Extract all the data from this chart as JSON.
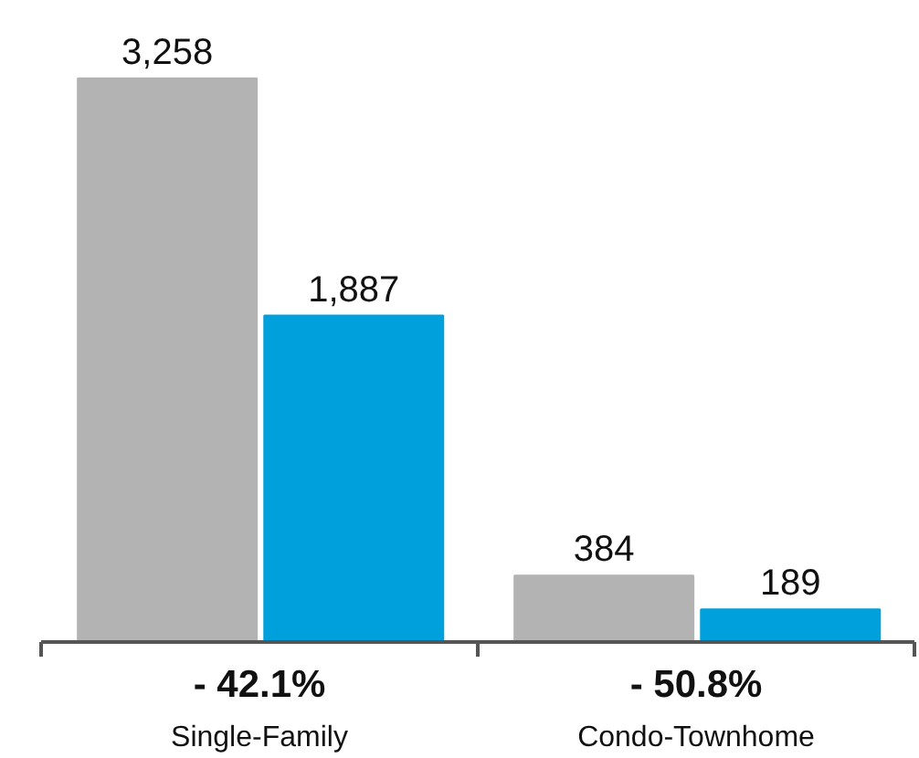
{
  "chart_data": {
    "type": "bar",
    "categories": [
      "Single-Family",
      "Condo-Townhome"
    ],
    "series": [
      {
        "color": "#b3b3b3",
        "values": [
          3258,
          384
        ],
        "value_labels": [
          "3,258",
          "384"
        ]
      },
      {
        "color": "#00a0dc",
        "values": [
          1887,
          189
        ],
        "value_labels": [
          "1,887",
          "189"
        ]
      }
    ],
    "annotations": [
      "- 42.1%",
      "- 50.8%"
    ]
  }
}
